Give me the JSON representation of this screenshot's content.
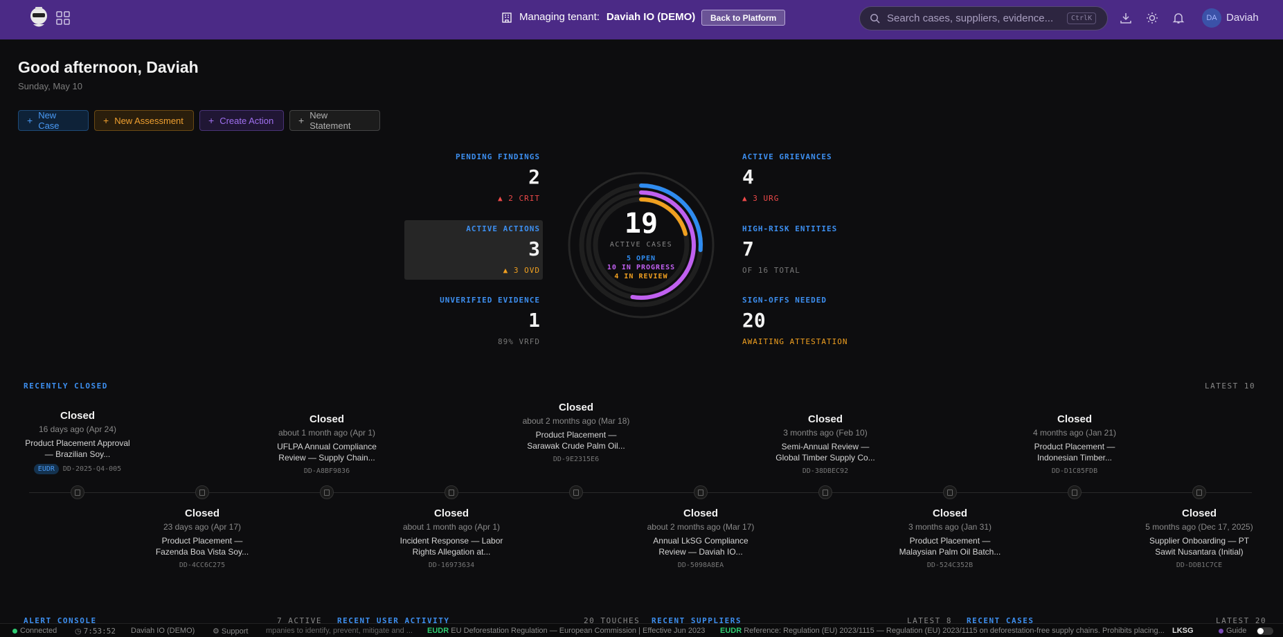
{
  "header": {
    "tenant_label": "Managing tenant:",
    "tenant_name": "Daviah IO (DEMO)",
    "back_button": "Back to Platform",
    "search_placeholder": "Search cases, suppliers, evidence...",
    "search_shortcut": "CtrlK",
    "user_initials": "DA",
    "user_name": "Daviah"
  },
  "greeting": "Good afternoon, Daviah",
  "date": "Sunday, May 10",
  "quick_actions": [
    {
      "label": "New Case",
      "color": "#3d8ff0"
    },
    {
      "label": "New Assessment",
      "color": "#f0a030"
    },
    {
      "label": "Create Action",
      "color": "#a070f0"
    },
    {
      "label": "New Statement",
      "color": "#b0b0b0"
    }
  ],
  "stats": {
    "pending_findings": {
      "label": "PENDING FINDINGS",
      "value": "2",
      "sub": "▲ 2 CRIT"
    },
    "active_actions": {
      "label": "ACTIVE ACTIONS",
      "value": "3",
      "sub": "▲ 3 OVD"
    },
    "unverified_evidence": {
      "label": "UNVERIFIED EVIDENCE",
      "value": "1",
      "sub": "89% VRFD"
    },
    "active_grievances": {
      "label": "ACTIVE GRIEVANCES",
      "value": "4",
      "sub": "▲ 3 URG"
    },
    "high_risk_entities": {
      "label": "HIGH-RISK ENTITIES",
      "value": "7",
      "sub": "OF 16 TOTAL"
    },
    "signoffs_needed": {
      "label": "SIGN-OFFS NEEDED",
      "value": "20",
      "sub": "AWAITING ATTESTATION"
    }
  },
  "ring": {
    "total": "19",
    "caption": "ACTIVE CASES",
    "open": "5 OPEN",
    "in_progress": "10 IN PROGRESS",
    "in_review": "4 IN REVIEW",
    "open_count": 5,
    "in_progress_count": 10,
    "in_review_count": 4,
    "colors": {
      "open": "#2f8cf0",
      "in_progress": "#c060f0",
      "in_review": "#f0a020"
    }
  },
  "recently_closed": {
    "title": "RECENTLY CLOSED",
    "right": "LATEST 10",
    "top": [
      {
        "status": "Closed",
        "ago": "16 days ago (Apr 24)",
        "title": "Product Placement Approval — Brazilian Soy...",
        "tag": "EUDR",
        "id": "DD-2025-Q4-005"
      },
      {
        "status": "Closed",
        "ago": "about 1 month ago (Apr 1)",
        "title": "UFLPA Annual Compliance Review — Supply Chain...",
        "id": "DD-A8BF9836"
      },
      {
        "status": "Closed",
        "ago": "about 2 months ago (Mar 18)",
        "title": "Product Placement — Sarawak Crude Palm Oil...",
        "id": "DD-9E2315E6"
      },
      {
        "status": "Closed",
        "ago": "3 months ago (Feb 10)",
        "title": "Semi-Annual Review — Global Timber Supply Co...",
        "id": "DD-38DBEC92"
      },
      {
        "status": "Closed",
        "ago": "4 months ago (Jan 21)",
        "title": "Product Placement — Indonesian Timber...",
        "id": "DD-D1C85FDB"
      }
    ],
    "bottom": [
      {
        "status": "Closed",
        "ago": "23 days ago (Apr 17)",
        "title": "Product Placement — Fazenda Boa Vista Soy...",
        "id": "DD-4CC6C275"
      },
      {
        "status": "Closed",
        "ago": "about 1 month ago (Apr 1)",
        "title": "Incident Response — Labor Rights Allegation at...",
        "id": "DD-16973634"
      },
      {
        "status": "Closed",
        "ago": "about 2 months ago (Mar 17)",
        "title": "Annual LkSG Compliance Review — Daviah IO...",
        "id": "DD-5098A8EA"
      },
      {
        "status": "Closed",
        "ago": "3 months ago (Jan 31)",
        "title": "Product Placement — Malaysian Palm Oil Batch...",
        "id": "DD-524C352B"
      },
      {
        "status": "Closed",
        "ago": "5 months ago (Dec 17, 2025)",
        "title": "Supplier Onboarding — PT Sawit Nusantara (Initial)",
        "id": "DD-DDB1C7CE"
      }
    ]
  },
  "bottom_sections": [
    "ALERT CONSOLE",
    "RECENT USER ACTIVITY",
    "RECENT SUPPLIERS",
    "RECENT CASES"
  ],
  "bottom_right": [
    "7 ACTIVE",
    "20 TOUCHES",
    "LATEST 8",
    "LATEST 20"
  ],
  "footer": {
    "status": "Connected",
    "time": "7:53:52",
    "tenant": "Daviah IO (DEMO)",
    "support": "Support",
    "ticker_1": "mpanies to identify, prevent, mitigate and ...",
    "eudr_1_tag": "EUDR",
    "eudr_1_text": "EU Deforestation Regulation — European Commission | Effective Jun 2023",
    "eudr_2_tag": "EUDR",
    "eudr_2_text": "Reference: Regulation (EU) 2023/1115 — Regulation (EU) 2023/1115 on deforestation-free supply chains. Prohibits placing...",
    "lksg": "LKSG",
    "guide": "Guide"
  }
}
